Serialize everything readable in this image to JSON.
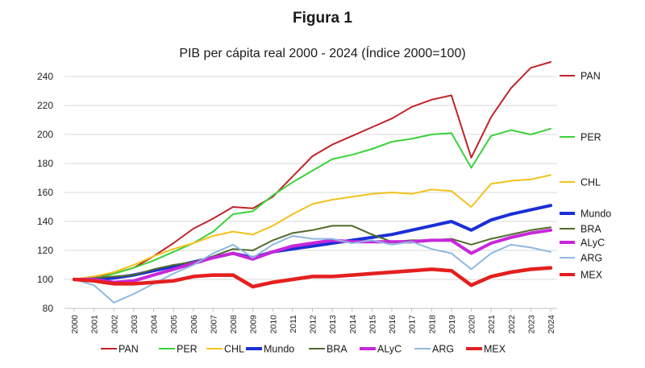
{
  "figure_heading": "Figura 1",
  "chart_data": {
    "type": "line",
    "title": "PIB per cápita real 2000 - 2024 (Índice 2000=100)",
    "xlabel": "",
    "ylabel": "",
    "ylim": [
      80,
      240
    ],
    "yticks": [
      80,
      100,
      120,
      140,
      160,
      180,
      200,
      220,
      240
    ],
    "grid": "horizontal",
    "legend": "bottom",
    "x": [
      "2000",
      "2001",
      "2002",
      "2003",
      "2004",
      "2005",
      "2006",
      "2007",
      "2008",
      "2009",
      "2010",
      "2011",
      "2012",
      "2013",
      "2014",
      "2015",
      "2016",
      "2017",
      "2018",
      "2019",
      "2020",
      "2021",
      "2022",
      "2023",
      "2024"
    ],
    "series": [
      {
        "name": "PAN",
        "color": "#c0242b",
        "width": 2,
        "values": [
          100,
          102,
          104,
          108,
          116,
          125,
          135,
          142,
          150,
          149,
          157,
          171,
          185,
          193,
          199,
          205,
          211,
          219,
          224,
          227,
          184,
          212,
          232,
          246,
          250
        ]
      },
      {
        "name": "PER",
        "color": "#3ad23a",
        "width": 2,
        "values": [
          100,
          100,
          104,
          108,
          113,
          119,
          125,
          133,
          145,
          147,
          158,
          167,
          175,
          183,
          186,
          190,
          195,
          197,
          200,
          201,
          177,
          199,
          203,
          200,
          204
        ]
      },
      {
        "name": "CHL",
        "color": "#f2c21b",
        "width": 2,
        "values": [
          100,
          102,
          105,
          110,
          116,
          121,
          125,
          130,
          133,
          131,
          137,
          145,
          152,
          155,
          157,
          159,
          160,
          159,
          162,
          161,
          150,
          166,
          168,
          169,
          172
        ]
      },
      {
        "name": "Mundo",
        "color": "#1a2fd6",
        "width": 4,
        "values": [
          100,
          100,
          101,
          103,
          106,
          109,
          112,
          115,
          118,
          115,
          119,
          121,
          123,
          125,
          127,
          129,
          131,
          134,
          137,
          140,
          134,
          141,
          145,
          148,
          151
        ]
      },
      {
        "name": "BRA",
        "color": "#4f6b2a",
        "width": 2,
        "values": [
          100,
          101,
          102,
          103,
          107,
          110,
          112,
          116,
          121,
          120,
          127,
          132,
          134,
          137,
          137,
          131,
          126,
          127,
          127,
          128,
          124,
          128,
          131,
          134,
          136
        ]
      },
      {
        "name": "ALyC",
        "color": "#c727d9",
        "width": 4,
        "values": [
          100,
          100,
          98,
          99,
          103,
          107,
          111,
          115,
          118,
          114,
          119,
          123,
          125,
          127,
          126,
          126,
          126,
          126,
          127,
          127,
          118,
          125,
          129,
          132,
          134
        ]
      },
      {
        "name": "ARG",
        "color": "#8eb8e2",
        "width": 2,
        "values": [
          100,
          96,
          84,
          90,
          97,
          104,
          110,
          118,
          124,
          115,
          124,
          130,
          128,
          128,
          125,
          127,
          124,
          126,
          121,
          118,
          107,
          118,
          124,
          122,
          119
        ]
      },
      {
        "name": "MEX",
        "color": "#e51f1f",
        "width": 4.5,
        "values": [
          100,
          99,
          97,
          97,
          98,
          99,
          102,
          103,
          103,
          95,
          98,
          100,
          102,
          102,
          103,
          104,
          105,
          106,
          107,
          106,
          96,
          102,
          105,
          107,
          108
        ]
      }
    ]
  }
}
